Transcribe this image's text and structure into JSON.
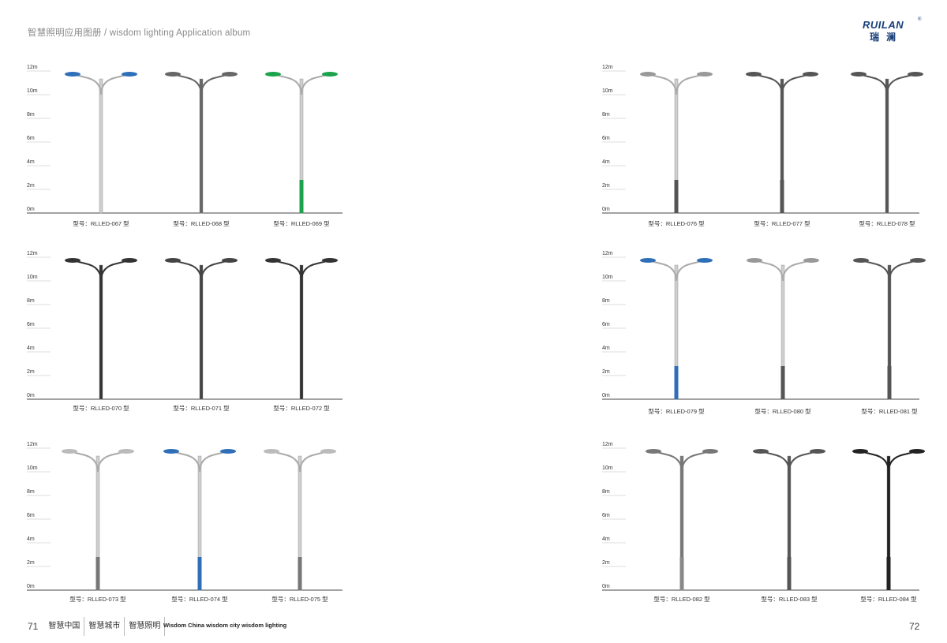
{
  "header": {
    "title": "智慧照明应用图册 / wisdom lighting Application album"
  },
  "brand": {
    "name_en": "RUILAN",
    "registered": "®",
    "name_cn": "瑞澜"
  },
  "scale_labels": [
    "12m",
    "10m",
    "8m",
    "6m",
    "4m",
    "2m",
    "0m"
  ],
  "panels": [
    {
      "id": "panel-left-1",
      "models": [
        {
          "label": "型号：RLLED-067 型",
          "accent": "#2f6fb8",
          "base": ""
        },
        {
          "label": "型号：RLLED-068 型",
          "accent": "#666666",
          "base": ""
        },
        {
          "label": "型号：RLLED-069 型",
          "accent": "#1aa34a",
          "base": "#1aa34a"
        }
      ]
    },
    {
      "id": "panel-left-2",
      "models": [
        {
          "label": "型号：RLLED-070 型",
          "accent": "#333333",
          "base": ""
        },
        {
          "label": "型号：RLLED-071 型",
          "accent": "#444444",
          "base": ""
        },
        {
          "label": "型号：RLLED-072 型",
          "accent": "#333333",
          "base": ""
        }
      ]
    },
    {
      "id": "panel-left-3",
      "models": [
        {
          "label": "型号：RLLED-073 型",
          "accent": "#bbbbbb",
          "base": "#777777"
        },
        {
          "label": "型号：RLLED-074 型",
          "accent": "#2f6fb8",
          "base": "#2f6fb8"
        },
        {
          "label": "型号：RLLED-075 型",
          "accent": "#bbbbbb",
          "base": "#777777"
        }
      ]
    },
    {
      "id": "panel-right-1",
      "models": [
        {
          "label": "型号：RLLED-076 型",
          "accent": "#999999",
          "base": "#555555"
        },
        {
          "label": "型号：RLLED-077 型",
          "accent": "#555555",
          "base": "#555555"
        },
        {
          "label": "型号：RLLED-078 型",
          "accent": "#555555",
          "base": ""
        }
      ]
    },
    {
      "id": "panel-right-2",
      "models": [
        {
          "label": "型号：RLLED-079 型",
          "accent": "#2f6fb8",
          "base": "#2f6fb8"
        },
        {
          "label": "型号：RLLED-080 型",
          "accent": "#999999",
          "base": "#555555"
        },
        {
          "label": "型号：RLLED-081 型",
          "accent": "#555555",
          "base": "#555555"
        }
      ]
    },
    {
      "id": "panel-right-3",
      "models": [
        {
          "label": "型号：RLLED-082 型",
          "accent": "#777777",
          "base": "#888888"
        },
        {
          "label": "型号：RLLED-083 型",
          "accent": "#555555",
          "base": "#555555"
        },
        {
          "label": "型号：RLLED-084 型",
          "accent": "#222222",
          "base": "#222222"
        }
      ]
    }
  ],
  "footer": {
    "page_left": "71",
    "items": [
      "智慧中国",
      "智慧城市",
      "智慧照明"
    ],
    "slogan": "Wisdom China  wisdom city  wisdom lighting",
    "page_right": "72"
  }
}
